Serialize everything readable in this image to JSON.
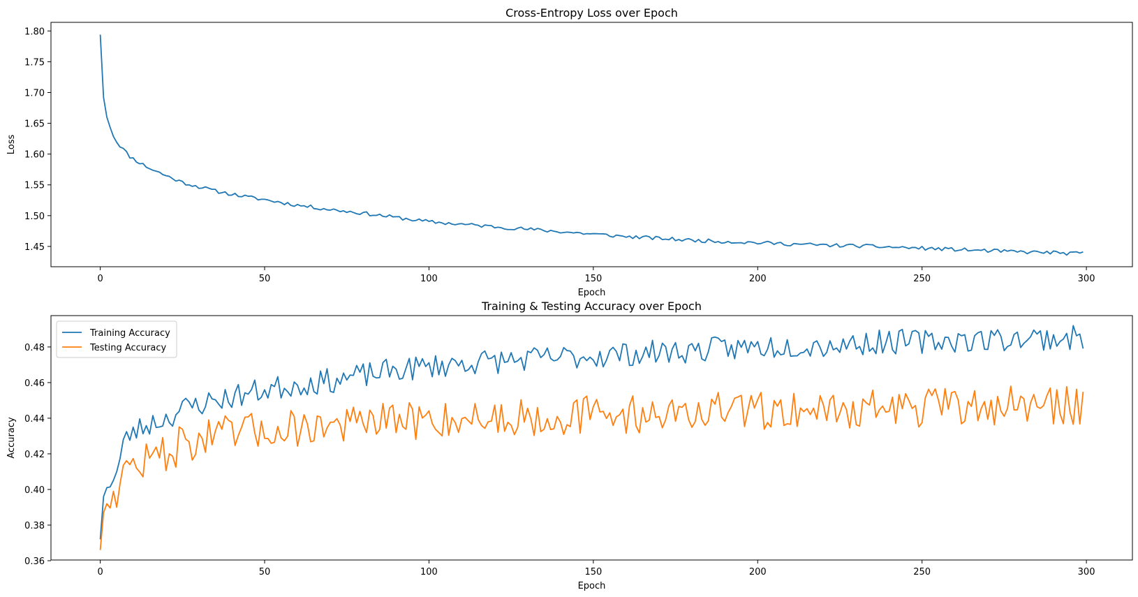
{
  "chart_data": [
    {
      "type": "line",
      "title": "Cross-Entropy Loss over Epoch",
      "xlabel": "Epoch",
      "ylabel": "Loss",
      "xlim": [
        -15,
        314
      ],
      "ylim": [
        1.417,
        1.814
      ],
      "xticks": [
        0,
        50,
        100,
        150,
        200,
        250,
        300
      ],
      "yticks": [
        1.45,
        1.5,
        1.55,
        1.6,
        1.65,
        1.7,
        1.75,
        1.8
      ],
      "ytick_labels": [
        "1.45",
        "1.50",
        "1.55",
        "1.60",
        "1.65",
        "1.70",
        "1.75",
        "1.80"
      ],
      "legend": null,
      "series": [
        {
          "name": "Loss",
          "color": "#1f77b4",
          "anchors": [
            [
              0,
              1.794
            ],
            [
              1,
              1.692
            ],
            [
              2,
              1.66
            ],
            [
              3,
              1.645
            ],
            [
              4,
              1.63
            ],
            [
              5,
              1.62
            ],
            [
              7,
              1.608
            ],
            [
              9,
              1.596
            ],
            [
              12,
              1.586
            ],
            [
              15,
              1.577
            ],
            [
              20,
              1.565
            ],
            [
              25,
              1.554
            ],
            [
              30,
              1.547
            ],
            [
              35,
              1.54
            ],
            [
              40,
              1.535
            ],
            [
              45,
              1.53
            ],
            [
              50,
              1.526
            ],
            [
              60,
              1.517
            ],
            [
              70,
              1.51
            ],
            [
              80,
              1.504
            ],
            [
              90,
              1.497
            ],
            [
              100,
              1.49
            ],
            [
              110,
              1.486
            ],
            [
              120,
              1.482
            ],
            [
              130,
              1.478
            ],
            [
              140,
              1.474
            ],
            [
              150,
              1.47
            ],
            [
              160,
              1.466
            ],
            [
              170,
              1.463
            ],
            [
              180,
              1.46
            ],
            [
              190,
              1.458
            ],
            [
              200,
              1.456
            ],
            [
              210,
              1.454
            ],
            [
              220,
              1.452
            ],
            [
              230,
              1.451
            ],
            [
              240,
              1.449
            ],
            [
              250,
              1.447
            ],
            [
              260,
              1.445
            ],
            [
              270,
              1.443
            ],
            [
              280,
              1.441
            ],
            [
              290,
              1.44
            ],
            [
              296,
              1.438
            ],
            [
              299,
              1.44
            ]
          ],
          "noise": 0.003,
          "seed": 11
        }
      ]
    },
    {
      "type": "line",
      "title": "Training & Testing Accuracy over Epoch",
      "xlabel": "Epoch",
      "ylabel": "Accuracy",
      "xlim": [
        -15,
        314
      ],
      "ylim": [
        0.3604,
        0.4976
      ],
      "xticks": [
        0,
        50,
        100,
        150,
        200,
        250,
        300
      ],
      "yticks": [
        0.36,
        0.38,
        0.4,
        0.42,
        0.44,
        0.46,
        0.48
      ],
      "ytick_labels": [
        "0.36",
        "0.38",
        "0.40",
        "0.42",
        "0.44",
        "0.46",
        "0.48"
      ],
      "legend": "top-left",
      "series": [
        {
          "name": "Training Accuracy",
          "color": "#1f77b4",
          "anchors": [
            [
              0,
              0.372
            ],
            [
              1,
              0.396
            ],
            [
              2,
              0.401
            ],
            [
              3,
              0.405
            ],
            [
              5,
              0.409
            ],
            [
              7,
              0.425
            ],
            [
              9,
              0.431
            ],
            [
              12,
              0.434
            ],
            [
              15,
              0.437
            ],
            [
              20,
              0.44
            ],
            [
              25,
              0.445
            ],
            [
              30,
              0.448
            ],
            [
              40,
              0.452
            ],
            [
              50,
              0.456
            ],
            [
              60,
              0.459
            ],
            [
              70,
              0.461
            ],
            [
              80,
              0.464
            ],
            [
              90,
              0.467
            ],
            [
              100,
              0.469
            ],
            [
              110,
              0.471
            ],
            [
              120,
              0.472
            ],
            [
              130,
              0.473
            ],
            [
              140,
              0.474
            ],
            [
              150,
              0.475
            ],
            [
              160,
              0.476
            ],
            [
              170,
              0.477
            ],
            [
              180,
              0.478
            ],
            [
              190,
              0.479
            ],
            [
              200,
              0.48
            ],
            [
              210,
              0.481
            ],
            [
              220,
              0.481
            ],
            [
              230,
              0.482
            ],
            [
              240,
              0.483
            ],
            [
              250,
              0.483
            ],
            [
              260,
              0.484
            ],
            [
              270,
              0.484
            ],
            [
              280,
              0.485
            ],
            [
              290,
              0.485
            ],
            [
              299,
              0.485
            ]
          ],
          "noise": 0.007,
          "seed": 23
        },
        {
          "name": "Testing Accuracy",
          "color": "#ff7f0e",
          "anchors": [
            [
              0,
              0.366
            ],
            [
              1,
              0.387
            ],
            [
              2,
              0.392
            ],
            [
              3,
              0.395
            ],
            [
              5,
              0.401
            ],
            [
              7,
              0.409
            ],
            [
              10,
              0.413
            ],
            [
              15,
              0.417
            ],
            [
              20,
              0.421
            ],
            [
              25,
              0.425
            ],
            [
              30,
              0.428
            ],
            [
              40,
              0.431
            ],
            [
              50,
              0.433
            ],
            [
              60,
              0.435
            ],
            [
              70,
              0.436
            ],
            [
              80,
              0.437
            ],
            [
              90,
              0.438
            ],
            [
              100,
              0.439
            ],
            [
              110,
              0.44
            ],
            [
              120,
              0.44
            ],
            [
              130,
              0.441
            ],
            [
              140,
              0.441
            ],
            [
              150,
              0.442
            ],
            [
              160,
              0.442
            ],
            [
              170,
              0.443
            ],
            [
              180,
              0.443
            ],
            [
              190,
              0.444
            ],
            [
              200,
              0.444
            ],
            [
              210,
              0.445
            ],
            [
              220,
              0.445
            ],
            [
              230,
              0.445
            ],
            [
              240,
              0.446
            ],
            [
              250,
              0.446
            ],
            [
              260,
              0.446
            ],
            [
              270,
              0.447
            ],
            [
              280,
              0.447
            ],
            [
              290,
              0.447
            ],
            [
              299,
              0.447
            ]
          ],
          "noise": 0.011,
          "seed": 47
        }
      ]
    }
  ]
}
